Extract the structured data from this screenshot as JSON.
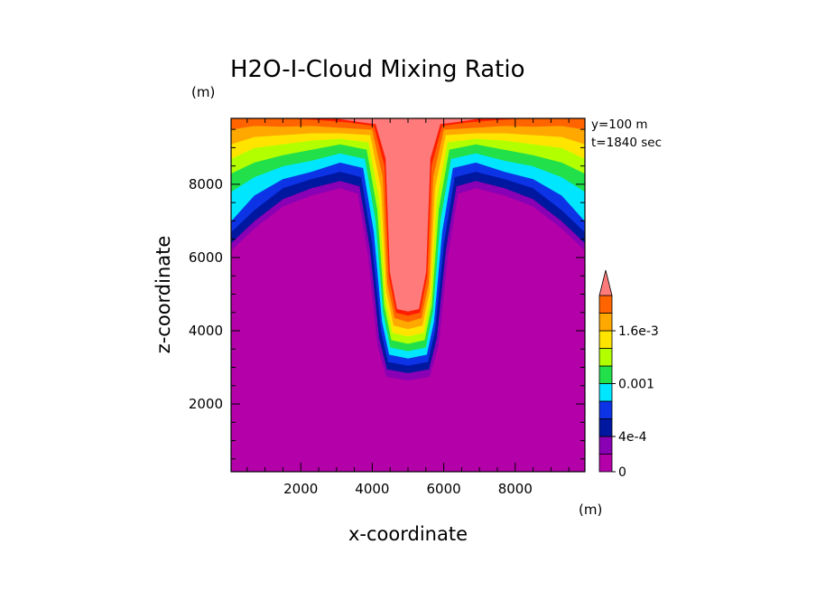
{
  "chart_data": {
    "type": "heatmap",
    "title": "H2O-I-Cloud Mixing Ratio",
    "xlabel": "x-coordinate",
    "ylabel": "z-coordinate",
    "x_unit": "(m)",
    "z_unit": "(m)",
    "xlim": [
      50,
      9950
    ],
    "ylim": [
      150,
      9800
    ],
    "x_ticks": [
      2000,
      4000,
      6000,
      8000
    ],
    "y_ticks": [
      2000,
      4000,
      6000,
      8000
    ],
    "info_lines": [
      "y=100 m",
      "t=1840 sec"
    ],
    "colorbar": {
      "levels": [
        0,
        0.0002,
        0.0004,
        0.0006,
        0.0008,
        0.001,
        0.0012,
        0.0014,
        0.0016,
        0.0018,
        0.002
      ],
      "colors": [
        "#b400a8",
        "#8a00b4",
        "#0018a0",
        "#0c34e6",
        "#00e6ff",
        "#22e04a",
        "#b2ff00",
        "#ffe400",
        "#ffa800",
        "#ff6400",
        "#ff1e00",
        "#ff7a7a"
      ],
      "tick_values": [
        0,
        0.0004,
        0.001,
        0.0016
      ],
      "tick_labels": [
        "0",
        "4e-4",
        "0.001",
        "1.6e-3"
      ],
      "extend": "max"
    },
    "contours": [
      {
        "level": 0.0002,
        "color": "#8a00b4",
        "points": [
          [
            50,
            6200
          ],
          [
            700,
            6800
          ],
          [
            1500,
            7400
          ],
          [
            2300,
            7700
          ],
          [
            3100,
            7900
          ],
          [
            3600,
            7750
          ],
          [
            3900,
            6000
          ],
          [
            4150,
            3600
          ],
          [
            4400,
            2750
          ],
          [
            5000,
            2650
          ],
          [
            5600,
            2750
          ],
          [
            5850,
            3600
          ],
          [
            6100,
            6000
          ],
          [
            6400,
            7750
          ],
          [
            6900,
            7900
          ],
          [
            7700,
            7700
          ],
          [
            8500,
            7400
          ],
          [
            9300,
            6800
          ],
          [
            9950,
            6200
          ]
        ]
      },
      {
        "level": 0.0004,
        "color": "#0018a0",
        "points": [
          [
            50,
            6400
          ],
          [
            700,
            7000
          ],
          [
            1500,
            7600
          ],
          [
            2300,
            7900
          ],
          [
            3100,
            8100
          ],
          [
            3650,
            7950
          ],
          [
            3950,
            6200
          ],
          [
            4200,
            3800
          ],
          [
            4420,
            2950
          ],
          [
            5000,
            2850
          ],
          [
            5580,
            2950
          ],
          [
            5800,
            3800
          ],
          [
            6050,
            6200
          ],
          [
            6350,
            7950
          ],
          [
            6900,
            8100
          ],
          [
            7700,
            7900
          ],
          [
            8500,
            7600
          ],
          [
            9300,
            7000
          ],
          [
            9950,
            6400
          ]
        ]
      },
      {
        "level": 0.0006,
        "color": "#0c34e6",
        "points": [
          [
            50,
            6700
          ],
          [
            700,
            7300
          ],
          [
            1500,
            7900
          ],
          [
            2300,
            8150
          ],
          [
            3100,
            8350
          ],
          [
            3700,
            8200
          ],
          [
            4000,
            6400
          ],
          [
            4250,
            4000
          ],
          [
            4450,
            3150
          ],
          [
            5000,
            3050
          ],
          [
            5550,
            3150
          ],
          [
            5750,
            4000
          ],
          [
            6000,
            6400
          ],
          [
            6300,
            8200
          ],
          [
            6900,
            8350
          ],
          [
            7700,
            8150
          ],
          [
            8500,
            7900
          ],
          [
            9300,
            7300
          ],
          [
            9950,
            6700
          ]
        ]
      },
      {
        "level": 0.0008,
        "color": "#00e6ff",
        "points": [
          [
            50,
            7000
          ],
          [
            700,
            7700
          ],
          [
            1500,
            8150
          ],
          [
            2300,
            8350
          ],
          [
            3100,
            8600
          ],
          [
            3750,
            8450
          ],
          [
            4050,
            6700
          ],
          [
            4280,
            4250
          ],
          [
            4480,
            3350
          ],
          [
            5000,
            3250
          ],
          [
            5520,
            3350
          ],
          [
            5720,
            4250
          ],
          [
            5950,
            6700
          ],
          [
            6250,
            8450
          ],
          [
            6900,
            8600
          ],
          [
            7700,
            8350
          ],
          [
            8500,
            8150
          ],
          [
            9300,
            7700
          ],
          [
            9950,
            7000
          ]
        ]
      },
      {
        "level": 0.001,
        "color": "#22e04a",
        "points": [
          [
            50,
            7800
          ],
          [
            700,
            8200
          ],
          [
            1500,
            8500
          ],
          [
            2300,
            8650
          ],
          [
            3100,
            8850
          ],
          [
            3800,
            8700
          ],
          [
            4100,
            7000
          ],
          [
            4310,
            4500
          ],
          [
            4510,
            3550
          ],
          [
            5000,
            3450
          ],
          [
            5490,
            3550
          ],
          [
            5690,
            4500
          ],
          [
            5900,
            7000
          ],
          [
            6200,
            8700
          ],
          [
            6900,
            8850
          ],
          [
            7700,
            8650
          ],
          [
            8500,
            8500
          ],
          [
            9300,
            8200
          ],
          [
            9950,
            7800
          ]
        ]
      },
      {
        "level": 0.0012,
        "color": "#b2ff00",
        "points": [
          [
            50,
            8300
          ],
          [
            700,
            8600
          ],
          [
            1500,
            8800
          ],
          [
            2300,
            8950
          ],
          [
            3100,
            9100
          ],
          [
            3850,
            8950
          ],
          [
            4150,
            7300
          ],
          [
            4340,
            4700
          ],
          [
            4540,
            3750
          ],
          [
            5000,
            3650
          ],
          [
            5460,
            3750
          ],
          [
            5660,
            4700
          ],
          [
            5850,
            7300
          ],
          [
            6150,
            8950
          ],
          [
            6900,
            9100
          ],
          [
            7700,
            8950
          ],
          [
            8500,
            8800
          ],
          [
            9300,
            8600
          ],
          [
            9950,
            8300
          ]
        ]
      },
      {
        "level": 0.0014,
        "color": "#ffe400",
        "points": [
          [
            50,
            8700
          ],
          [
            700,
            9000
          ],
          [
            1500,
            9100
          ],
          [
            2300,
            9200
          ],
          [
            3100,
            9250
          ],
          [
            3900,
            9150
          ],
          [
            4200,
            7600
          ],
          [
            4370,
            4900
          ],
          [
            4570,
            3950
          ],
          [
            5000,
            3850
          ],
          [
            5430,
            3950
          ],
          [
            5630,
            4900
          ],
          [
            5800,
            7600
          ],
          [
            6100,
            9150
          ],
          [
            6900,
            9250
          ],
          [
            7700,
            9200
          ],
          [
            8500,
            9100
          ],
          [
            9300,
            9000
          ],
          [
            9950,
            8700
          ]
        ]
      },
      {
        "level": 0.0016,
        "color": "#ffa800",
        "points": [
          [
            50,
            9100
          ],
          [
            700,
            9300
          ],
          [
            1500,
            9350
          ],
          [
            2300,
            9400
          ],
          [
            3100,
            9400
          ],
          [
            3950,
            9350
          ],
          [
            4250,
            7900
          ],
          [
            4400,
            5100
          ],
          [
            4600,
            4150
          ],
          [
            5000,
            4050
          ],
          [
            5400,
            4150
          ],
          [
            5600,
            5100
          ],
          [
            5750,
            7900
          ],
          [
            6050,
            9350
          ],
          [
            6900,
            9400
          ],
          [
            7700,
            9400
          ],
          [
            8500,
            9350
          ],
          [
            9300,
            9300
          ],
          [
            9950,
            9100
          ]
        ]
      },
      {
        "level": 0.0018,
        "color": "#ff6400",
        "points": [
          [
            50,
            9500
          ],
          [
            700,
            9600
          ],
          [
            1500,
            9580
          ],
          [
            2300,
            9600
          ],
          [
            3100,
            9550
          ],
          [
            4000,
            9500
          ],
          [
            4300,
            8200
          ],
          [
            4430,
            5300
          ],
          [
            4630,
            4350
          ],
          [
            5000,
            4250
          ],
          [
            5370,
            4350
          ],
          [
            5570,
            5300
          ],
          [
            5700,
            8200
          ],
          [
            6000,
            9500
          ],
          [
            6900,
            9550
          ],
          [
            7700,
            9600
          ],
          [
            8500,
            9580
          ],
          [
            9300,
            9600
          ],
          [
            9950,
            9500
          ]
        ]
      },
      {
        "level": 0.002,
        "color": "#ff1e00",
        "points": [
          [
            1800,
            9800
          ],
          [
            2600,
            9750
          ],
          [
            3300,
            9700
          ],
          [
            4050,
            9600
          ],
          [
            4350,
            8500
          ],
          [
            4470,
            5500
          ],
          [
            4670,
            4500
          ],
          [
            5000,
            4420
          ],
          [
            5330,
            4500
          ],
          [
            5530,
            5500
          ],
          [
            5650,
            8500
          ],
          [
            5950,
            9600
          ],
          [
            6700,
            9700
          ],
          [
            7400,
            9750
          ],
          [
            8200,
            9800
          ]
        ]
      },
      {
        "level": 0.0022,
        "color": "#ff7a7a",
        "points": [
          [
            3000,
            9800
          ],
          [
            3700,
            9700
          ],
          [
            4100,
            9650
          ],
          [
            4380,
            8700
          ],
          [
            4500,
            5600
          ],
          [
            4700,
            4600
          ],
          [
            5000,
            4530
          ],
          [
            5300,
            4600
          ],
          [
            5500,
            5600
          ],
          [
            5620,
            8700
          ],
          [
            5900,
            9650
          ],
          [
            6300,
            9700
          ],
          [
            7000,
            9800
          ]
        ]
      }
    ]
  }
}
